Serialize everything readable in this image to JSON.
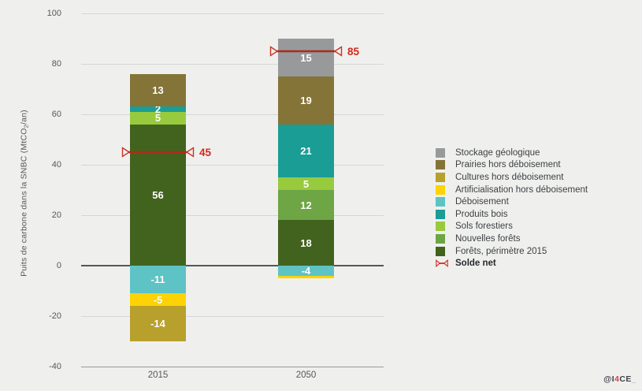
{
  "figure": {
    "ylabel": {
      "pre": "Puits de carbone dans la SNBC (MtCO",
      "sub": "2",
      "post": "/an)"
    },
    "logo": {
      "pre": "@I",
      "accent": "4",
      "post": "CE",
      "tail": "_"
    }
  },
  "chart_data": {
    "type": "bar",
    "stacked": true,
    "title": "",
    "ylabel": "Puits de carbone dans la SNBC (MtCO2/an)",
    "ylim": [
      -40,
      100
    ],
    "yticks": [
      100,
      80,
      60,
      40,
      20,
      0,
      -20,
      -40
    ],
    "categories": [
      "2015",
      "2050"
    ],
    "palette": {
      "Stockage géologique": "#98999b",
      "Prairies hors déboisement": "#857438",
      "Cultures hors déboisement": "#b8a02d",
      "Artificialisation hors déboisement": "#fdd304",
      "Déboisement": "#5ec3c5",
      "Produits bois": "#1a9d95",
      "Sols forestiers": "#98ca3e",
      "Nouvelles forêts": "#6ea545",
      "Forêts, périmètre 2015": "#42631e"
    },
    "bars": [
      {
        "label": "2015",
        "positive": [
          {
            "series": "Forêts, périmètre 2015",
            "value": 56,
            "label": "56"
          },
          {
            "series": "Sols forestiers",
            "value": 5,
            "label": "5"
          },
          {
            "series": "Produits bois",
            "value": 2,
            "label": "2"
          },
          {
            "series": "Prairies hors déboisement",
            "value": 13,
            "label": "13"
          }
        ],
        "negative": [
          {
            "series": "Déboisement",
            "value": -11,
            "label": "-11"
          },
          {
            "series": "Artificialisation hors déboisement",
            "value": -5,
            "label": "-5"
          },
          {
            "series": "Cultures hors déboisement",
            "value": -14,
            "label": "-14"
          }
        ],
        "net": 45
      },
      {
        "label": "2050",
        "positive": [
          {
            "series": "Forêts, périmètre 2015",
            "value": 18,
            "label": "18"
          },
          {
            "series": "Nouvelles forêts",
            "value": 12,
            "label": "12"
          },
          {
            "series": "Sols forestiers",
            "value": 5,
            "label": "5"
          },
          {
            "series": "Produits bois",
            "value": 21,
            "label": "21"
          },
          {
            "series": "Prairies hors déboisement",
            "value": 19,
            "label": "19"
          },
          {
            "series": "Stockage géologique",
            "value": 15,
            "label": "15"
          }
        ],
        "negative": [
          {
            "series": "Déboisement",
            "value": -4,
            "label": "-4"
          },
          {
            "series": "Artificialisation hors déboisement",
            "value": -1,
            "label": ""
          }
        ],
        "net": 85
      }
    ],
    "net_marker": {
      "label": "Solde net",
      "values": [
        45,
        85
      ],
      "color": "#d5281c"
    },
    "legend": [
      {
        "label": "Stockage géologique",
        "type": "swatch",
        "color": "#98999b"
      },
      {
        "label": "Prairies hors déboisement",
        "type": "swatch",
        "color": "#857438"
      },
      {
        "label": "Cultures hors déboisement",
        "type": "swatch",
        "color": "#b8a02d"
      },
      {
        "label": "Artificialisation hors déboisement",
        "type": "swatch",
        "color": "#fdd304"
      },
      {
        "label": "Déboisement",
        "type": "swatch",
        "color": "#5ec3c5"
      },
      {
        "label": "Produits bois",
        "type": "swatch",
        "color": "#1a9d95"
      },
      {
        "label": "Sols forestiers",
        "type": "swatch",
        "color": "#98ca3e"
      },
      {
        "label": "Nouvelles forêts",
        "type": "swatch",
        "color": "#6ea545"
      },
      {
        "label": "Forêts, périmètre 2015",
        "type": "swatch",
        "color": "#42631e"
      },
      {
        "label": "Solde net",
        "type": "marker",
        "color": "#d5281c",
        "bold": true
      }
    ]
  }
}
